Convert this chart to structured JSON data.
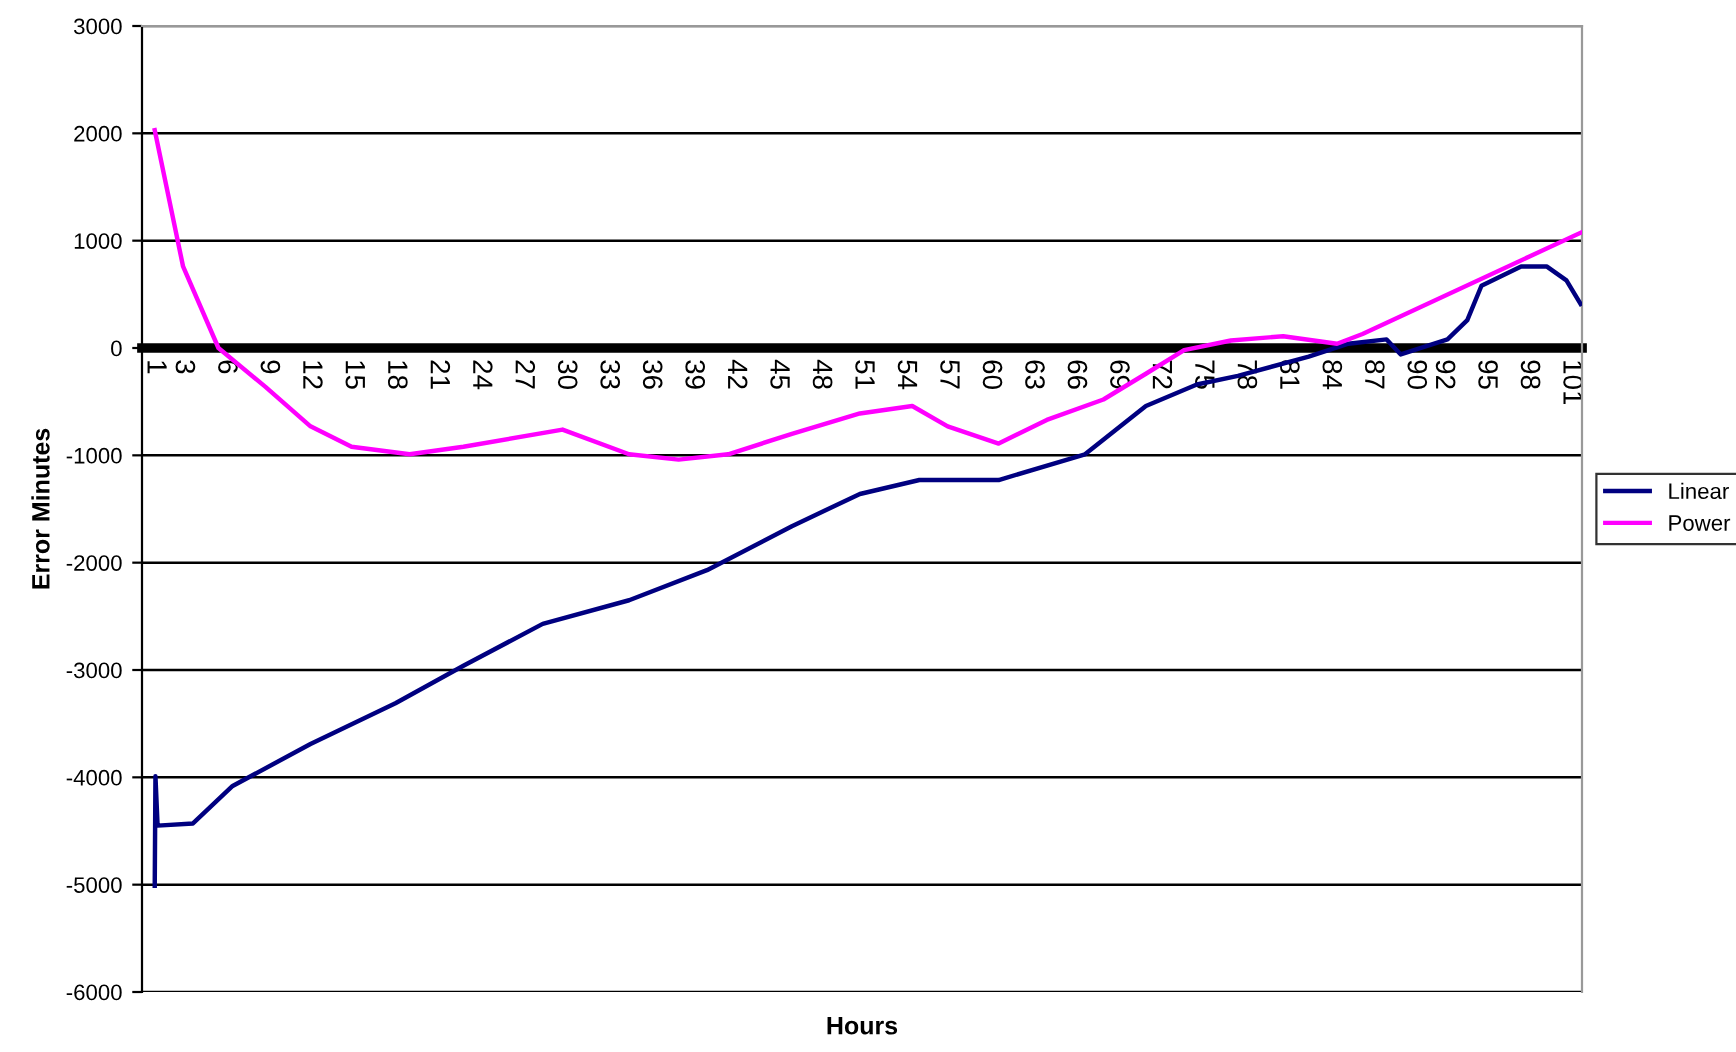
{
  "chart_data": {
    "type": "line",
    "xlabel": "Hours",
    "ylabel": "Error Minutes",
    "xlim": [
      0.1,
      101.8
    ],
    "xticks": [
      1,
      3,
      6,
      9,
      12,
      15,
      18,
      21,
      24,
      27,
      30,
      33,
      36,
      39,
      42,
      45,
      48,
      51,
      54,
      57,
      60,
      63,
      66,
      69,
      72,
      75,
      78,
      81,
      84,
      87,
      90,
      92,
      95,
      98,
      101
    ],
    "ylim": [
      -6000,
      3000
    ],
    "yticks": [
      -6000,
      -5000,
      -4000,
      -3000,
      -2000,
      -1000,
      0,
      1000,
      2000,
      3000
    ],
    "grid": "y",
    "legend": "right",
    "line_style": "solid",
    "marker": "none",
    "series": [
      {
        "name": "Linear",
        "color": "#000080",
        "x": [
          1,
          1.05,
          1.2,
          3.7,
          6.5,
          12,
          18,
          22.8,
          28.4,
          34.5,
          40,
          46,
          50.8,
          55,
          60.6,
          66.7,
          71,
          74.6,
          77.5,
          82.5,
          85.3,
          88,
          89,
          92.3,
          93.7,
          94.7,
          97.5,
          99.3,
          100.7,
          101.7
        ],
        "values": [
          -5010,
          -3990,
          -4450,
          -4430,
          -4080,
          -3690,
          -3310,
          -2960,
          -2570,
          -2350,
          -2070,
          -1660,
          -1360,
          -1230,
          -1230,
          -990,
          -540,
          -340,
          -260,
          -80,
          40,
          80,
          -60,
          80,
          260,
          580,
          760,
          760,
          630,
          410
        ]
      },
      {
        "name": "Power",
        "color": "#ff00ff",
        "x": [
          1,
          3,
          5.5,
          8.8,
          12,
          14.9,
          19,
          22.8,
          29.8,
          34.5,
          38,
          41.5,
          46,
          50.8,
          54.5,
          57,
          60.6,
          64,
          68,
          71,
          73.7,
          77,
          80.7,
          84.5,
          86.3,
          101.8
        ],
        "values": [
          2030,
          760,
          0,
          -360,
          -730,
          -920,
          -990,
          -920,
          -760,
          -990,
          -1040,
          -990,
          -800,
          -610,
          -540,
          -730,
          -890,
          -670,
          -480,
          -240,
          -20,
          70,
          110,
          40,
          130,
          1080
        ]
      }
    ]
  }
}
